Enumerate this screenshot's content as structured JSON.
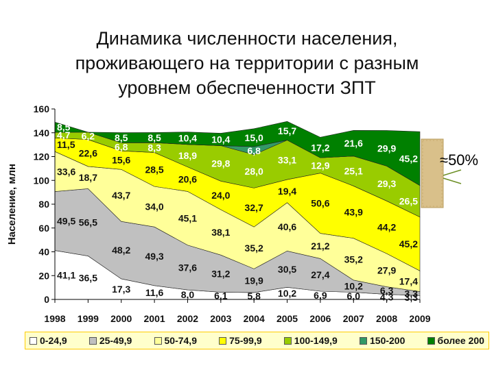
{
  "title_lines": [
    "Динамика численности населения,",
    "проживающего на территории с разным",
    "уровнем обеспеченности ЗПТ"
  ],
  "callout": "≈50%",
  "colors": [
    "#ffffff",
    "#c0c0c0",
    "#ffff99",
    "#ffff00",
    "#99cc00",
    "#339966",
    "#008000"
  ],
  "chart_data": {
    "type": "area",
    "stacked": true,
    "ylabel": "Население, млн",
    "xlabel": "",
    "ylim": [
      0,
      160
    ],
    "yticks": [
      0,
      20,
      40,
      60,
      80,
      100,
      120,
      140,
      160
    ],
    "categories": [
      "1998",
      "1999",
      "2000",
      "2001",
      "2002",
      "2003",
      "2004",
      "2005",
      "2006",
      "2007",
      "2008",
      "2009"
    ],
    "legend_position": "bottom",
    "series": [
      {
        "name": "0-24,9",
        "labels": [
          "41,1",
          "36,5",
          "17,3",
          "11,6",
          "8,0",
          "6,1",
          "5,8",
          "10,2",
          "6,9",
          "6,0",
          "4,3",
          "3,3"
        ],
        "values": [
          41.1,
          36.5,
          17.3,
          11.6,
          8.0,
          6.1,
          5.8,
          10.2,
          6.9,
          6.0,
          4.3,
          3.3
        ]
      },
      {
        "name": "25-49,9",
        "labels": [
          "49,5",
          "56,5",
          "48,2",
          "49,3",
          "37,6",
          "31,2",
          "19,9",
          "30,5",
          "27,4",
          "10,2",
          "6,3",
          "3,3"
        ],
        "values": [
          49.5,
          56.5,
          48.2,
          49.3,
          37.6,
          31.2,
          19.9,
          30.5,
          27.4,
          10.2,
          6.3,
          3.3
        ]
      },
      {
        "name": "50-74,9",
        "labels": [
          "33,6",
          "18,7",
          "43,7",
          "34,0",
          "45,1",
          "38,1",
          "35,2",
          "40,6",
          "21,2",
          "35,2",
          "27,9",
          "17,4"
        ],
        "values": [
          33.6,
          18.7,
          43.7,
          34.0,
          45.1,
          38.1,
          35.2,
          40.6,
          21.2,
          35.2,
          27.9,
          17.4
        ]
      },
      {
        "name": "75-99,9",
        "labels": [
          "11,5",
          "22,6",
          "15,6",
          "28,5",
          "20,6",
          "24,0",
          "32,7",
          "19,4",
          "50,6",
          "43,9",
          "44,2",
          "45,2"
        ],
        "values": [
          11.5,
          22.6,
          15.6,
          28.5,
          20.6,
          24.0,
          32.7,
          19.4,
          50.6,
          43.9,
          44.2,
          45.2
        ]
      },
      {
        "name": "100-149,9",
        "labels": [
          "4,7",
          "6,2",
          "6,8",
          "8,3",
          "18,9",
          "29,8",
          "28,0",
          "33,1",
          "12,9",
          "25,1",
          "29,3",
          "26,5"
        ],
        "values": [
          4.7,
          6.2,
          6.8,
          8.3,
          18.9,
          29.8,
          28.0,
          33.1,
          12.9,
          25.1,
          29.3,
          26.5
        ]
      },
      {
        "name": "150-200",
        "labels": [
          "",
          "",
          "",
          "",
          "",
          "",
          "6,8",
          "",
          "",
          "",
          "",
          ""
        ],
        "values": [
          0,
          0,
          0,
          0,
          0,
          0,
          6.8,
          0,
          0,
          0,
          0,
          0
        ]
      },
      {
        "name": "более 200",
        "labels": [
          "8,5",
          "",
          "8,5",
          "8,5",
          "10,4",
          "10,4",
          "15,0",
          "15,7",
          "17,2",
          "21,6",
          "29,9",
          "45,2"
        ],
        "values": [
          8.5,
          0,
          8.5,
          8.5,
          10.4,
          10.4,
          15.0,
          15.7,
          17.2,
          21.6,
          29.9,
          45.2
        ]
      }
    ]
  }
}
